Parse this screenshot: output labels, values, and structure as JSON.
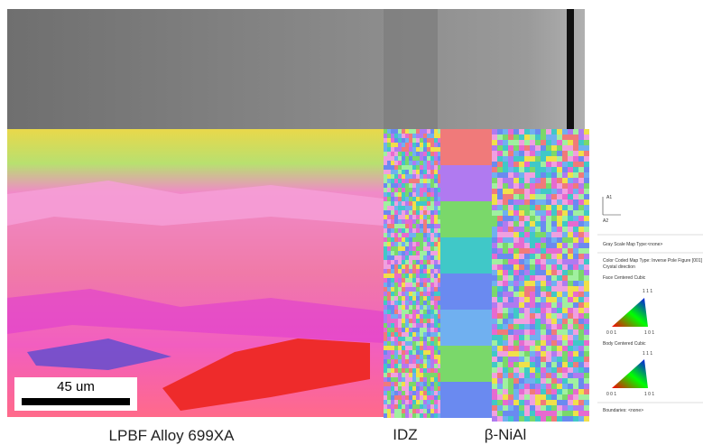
{
  "scale_bar": {
    "label": "45 um"
  },
  "captions": {
    "matrix": "LPBF Alloy 699XA",
    "idz": "IDZ",
    "coating": "β-NiAl"
  },
  "legend": {
    "axis_a1": "A1",
    "axis_a2": "A2",
    "gray_scale": "Gray Scale Map Type:<none>",
    "color_coded": "Color Coded Map Type: Inverse Pole Figure [001]",
    "crystal_direction": "Crystal direction",
    "fcc": {
      "title": "Face Centered Cubic",
      "top": "1 1 1",
      "left": "0 0 1",
      "right": "1 0 1"
    },
    "bcc": {
      "title": "Body Centered Cubic",
      "top": "1 1 1",
      "left": "0 0 1",
      "right": "1 0 1"
    },
    "boundaries": "Boundaries: <none>"
  }
}
